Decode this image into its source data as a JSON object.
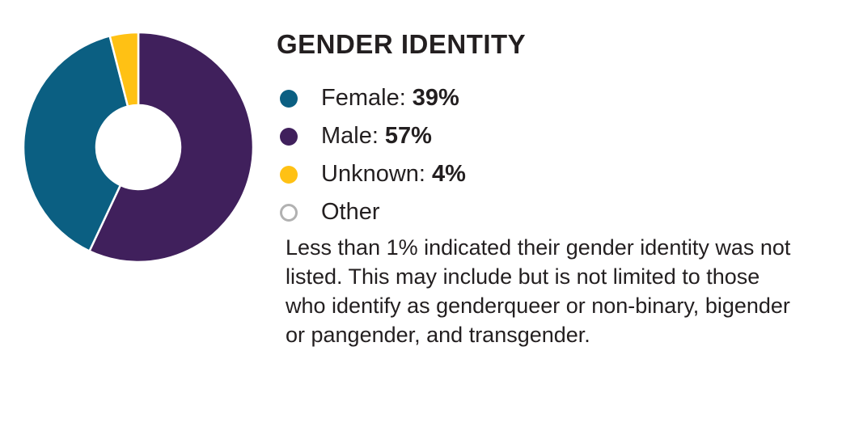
{
  "chart_data": {
    "type": "pie",
    "donut": true,
    "title": "GENDER IDENTITY",
    "legend_placement": "right",
    "slices": [
      {
        "label": "Male",
        "value": 57,
        "display": "57%",
        "color": "#40205c"
      },
      {
        "label": "Female",
        "value": 39,
        "display": "39%",
        "color": "#0b5f82"
      },
      {
        "label": "Unknown",
        "value": 4,
        "display": "4%",
        "color": "#ffc114"
      }
    ],
    "legend": [
      {
        "label": "Female:",
        "value": "39%",
        "color": "#0b5f82"
      },
      {
        "label": "Male:",
        "value": "57%",
        "color": "#40205c"
      },
      {
        "label": "Unknown:",
        "value": "4%",
        "color": "#ffc114"
      },
      {
        "label": "Other",
        "value": "",
        "color": "#b1b1b1",
        "hollow": true
      }
    ],
    "note": "Less than 1% indicated their gender identity was not listed. This may include but is not limited to those who identify as genderqueer or non-binary, bigender or pangender, and transgender."
  }
}
